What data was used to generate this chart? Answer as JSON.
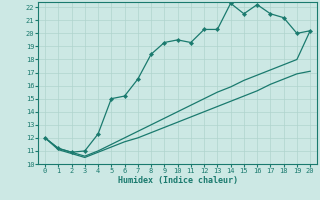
{
  "xlabel": "Humidex (Indice chaleur)",
  "bg_color": "#cce8e4",
  "grid_color": "#b0d4ce",
  "line_color": "#1a7a6e",
  "xlim": [
    -0.5,
    20.5
  ],
  "ylim": [
    10,
    22.4
  ],
  "xticks": [
    0,
    1,
    2,
    3,
    4,
    5,
    6,
    7,
    8,
    9,
    10,
    11,
    12,
    13,
    14,
    15,
    16,
    17,
    18,
    19,
    20
  ],
  "yticks": [
    10,
    11,
    12,
    13,
    14,
    15,
    16,
    17,
    18,
    19,
    20,
    21,
    22
  ],
  "line1_x": [
    0,
    1,
    2,
    3,
    4,
    5,
    6,
    7,
    8,
    9,
    10,
    11,
    12,
    13,
    14,
    15,
    16,
    17,
    18,
    19,
    20
  ],
  "line1_y": [
    12.0,
    11.1,
    10.8,
    10.5,
    10.9,
    11.3,
    11.7,
    12.0,
    12.4,
    12.8,
    13.2,
    13.6,
    14.0,
    14.4,
    14.8,
    15.2,
    15.6,
    16.1,
    16.5,
    16.9,
    17.1
  ],
  "line2_x": [
    0,
    1,
    2,
    3,
    4,
    5,
    6,
    7,
    8,
    9,
    10,
    11,
    12,
    13,
    14,
    15,
    16,
    17,
    18,
    19,
    20
  ],
  "line2_y": [
    12.0,
    11.2,
    10.9,
    10.6,
    11.0,
    11.5,
    12.0,
    12.5,
    13.0,
    13.5,
    14.0,
    14.5,
    15.0,
    15.5,
    15.9,
    16.4,
    16.8,
    17.2,
    17.6,
    18.0,
    20.2
  ],
  "line3_x": [
    0,
    1,
    2,
    3,
    4,
    5,
    6,
    7,
    8,
    9,
    10,
    11,
    12,
    13,
    14,
    15,
    16,
    17,
    18,
    19,
    20
  ],
  "line3_y": [
    12.0,
    11.2,
    10.9,
    11.0,
    12.3,
    15.0,
    15.2,
    16.5,
    18.4,
    19.3,
    19.5,
    19.3,
    20.3,
    20.3,
    22.3,
    21.5,
    22.2,
    21.5,
    21.2,
    20.0,
    20.2
  ]
}
